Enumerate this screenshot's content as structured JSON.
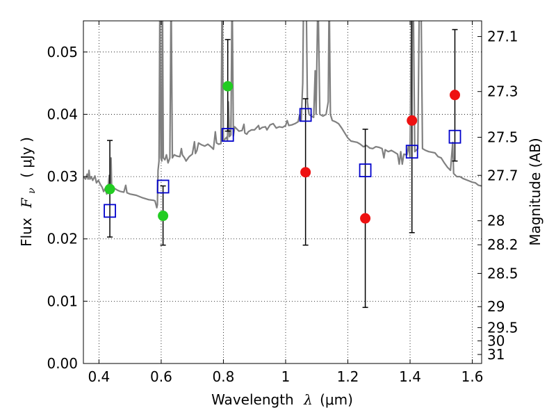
{
  "chart_data": {
    "type": "scatter",
    "xlabel": {
      "text": "Wavelength",
      "symbol": "λ",
      "unit": "(μm)"
    },
    "ylabel": {
      "text": "Flux",
      "symbol": "F",
      "subscript": "ν",
      "unit": "( μJy )"
    },
    "y2label": "Magnitude (AB)",
    "xlim": [
      0.35,
      1.63
    ],
    "ylim": [
      0.0,
      0.055
    ],
    "xticks": [
      0.4,
      0.6,
      0.8,
      1.0,
      1.2,
      1.4,
      1.6
    ],
    "xtick_labels": [
      "0.4",
      "0.6",
      "0.8",
      "1",
      "1.2",
      "1.4",
      "1.6"
    ],
    "yticks": [
      0.0,
      0.01,
      0.02,
      0.03,
      0.04,
      0.05
    ],
    "ytick_labels": [
      "0.00",
      "0.01",
      "0.02",
      "0.03",
      "0.04",
      "0.05"
    ],
    "y2ticks": [
      {
        "mag": 27.1,
        "label": "27.1"
      },
      {
        "mag": 27.3,
        "label": "27.3"
      },
      {
        "mag": 27.5,
        "label": "27.5"
      },
      {
        "mag": 27.7,
        "label": "27.7"
      },
      {
        "mag": 28.0,
        "label": "28"
      },
      {
        "mag": 28.2,
        "label": "28.2"
      },
      {
        "mag": 28.5,
        "label": "28.5"
      },
      {
        "mag": 29.0,
        "label": "29"
      },
      {
        "mag": 29.5,
        "label": "29.5"
      },
      {
        "mag": 30.0,
        "label": "30"
      },
      {
        "mag": 31.0,
        "label": "31"
      }
    ],
    "grid": true,
    "colors": {
      "model": "#808080",
      "observed_green": "#22cc22",
      "observed_red": "#ee1111",
      "model_box": "#0000cc",
      "errorbar": "#000000"
    },
    "errorbars": [
      {
        "x": 0.435,
        "y": 0.028,
        "ylow": 0.0203,
        "yhigh": 0.0358
      },
      {
        "x": 0.606,
        "y": 0.0237,
        "ylow": 0.019,
        "yhigh": 0.0285
      },
      {
        "x": 0.814,
        "y": 0.0445,
        "ylow": 0.0373,
        "yhigh": 0.052
      },
      {
        "x": 1.064,
        "y": 0.0307,
        "ylow": 0.019,
        "yhigh": 0.0425
      },
      {
        "x": 1.256,
        "y": 0.0233,
        "ylow": 0.009,
        "yhigh": 0.0376
      },
      {
        "x": 1.406,
        "y": 0.039,
        "ylow": 0.021,
        "yhigh": 0.056
      },
      {
        "x": 1.544,
        "y": 0.0431,
        "ylow": 0.0325,
        "yhigh": 0.0536
      }
    ],
    "observed_green": [
      {
        "x": 0.435,
        "y": 0.028
      },
      {
        "x": 0.606,
        "y": 0.0237
      },
      {
        "x": 0.814,
        "y": 0.0445
      }
    ],
    "observed_red": [
      {
        "x": 1.064,
        "y": 0.0307
      },
      {
        "x": 1.256,
        "y": 0.0233
      },
      {
        "x": 1.406,
        "y": 0.039
      },
      {
        "x": 1.544,
        "y": 0.0431
      }
    ],
    "model_boxes": [
      {
        "x": 0.435,
        "y": 0.0245
      },
      {
        "x": 0.606,
        "y": 0.0284
      },
      {
        "x": 0.814,
        "y": 0.0367
      },
      {
        "x": 1.064,
        "y": 0.0399
      },
      {
        "x": 1.256,
        "y": 0.031
      },
      {
        "x": 1.406,
        "y": 0.034
      },
      {
        "x": 1.544,
        "y": 0.0364
      }
    ],
    "model_spectrum": [
      [
        0.35,
        0.03
      ],
      [
        0.357,
        0.0296
      ],
      [
        0.362,
        0.0304
      ],
      [
        0.365,
        0.0296
      ],
      [
        0.368,
        0.031
      ],
      [
        0.371,
        0.0296
      ],
      [
        0.375,
        0.03
      ],
      [
        0.38,
        0.0294
      ],
      [
        0.387,
        0.0301
      ],
      [
        0.392,
        0.029
      ],
      [
        0.398,
        0.0294
      ],
      [
        0.405,
        0.0287
      ],
      [
        0.41,
        0.0283
      ],
      [
        0.415,
        0.0276
      ],
      [
        0.42,
        0.0281
      ],
      [
        0.425,
        0.0272
      ],
      [
        0.43,
        0.0285
      ],
      [
        0.433,
        0.0302
      ],
      [
        0.436,
        0.0274
      ],
      [
        0.439,
        0.033
      ],
      [
        0.441,
        0.028
      ],
      [
        0.443,
        0.0274
      ],
      [
        0.45,
        0.0281
      ],
      [
        0.46,
        0.0278
      ],
      [
        0.47,
        0.0276
      ],
      [
        0.48,
        0.0275
      ],
      [
        0.486,
        0.0286
      ],
      [
        0.49,
        0.0274
      ],
      [
        0.5,
        0.0272
      ],
      [
        0.52,
        0.027
      ],
      [
        0.54,
        0.0266
      ],
      [
        0.56,
        0.0263
      ],
      [
        0.575,
        0.0262
      ],
      [
        0.58,
        0.0261
      ],
      [
        0.586,
        0.025
      ],
      [
        0.588,
        0.0255
      ],
      [
        0.59,
        0.031
      ],
      [
        0.593,
        0.0325
      ],
      [
        0.596,
        0.06
      ],
      [
        0.599,
        0.033
      ],
      [
        0.602,
        0.0325
      ],
      [
        0.604,
        0.06
      ],
      [
        0.607,
        0.033
      ],
      [
        0.612,
        0.0327
      ],
      [
        0.617,
        0.0335
      ],
      [
        0.622,
        0.0322
      ],
      [
        0.628,
        0.033
      ],
      [
        0.632,
        0.06
      ],
      [
        0.636,
        0.033
      ],
      [
        0.642,
        0.0335
      ],
      [
        0.65,
        0.0333
      ],
      [
        0.66,
        0.0332
      ],
      [
        0.665,
        0.0345
      ],
      [
        0.668,
        0.0335
      ],
      [
        0.675,
        0.033
      ],
      [
        0.68,
        0.0325
      ],
      [
        0.69,
        0.0332
      ],
      [
        0.7,
        0.0336
      ],
      [
        0.707,
        0.0356
      ],
      [
        0.71,
        0.0337
      ],
      [
        0.715,
        0.0342
      ],
      [
        0.72,
        0.0354
      ],
      [
        0.73,
        0.0351
      ],
      [
        0.74,
        0.0349
      ],
      [
        0.75,
        0.0352
      ],
      [
        0.76,
        0.0348
      ],
      [
        0.768,
        0.0344
      ],
      [
        0.774,
        0.0372
      ],
      [
        0.778,
        0.0354
      ],
      [
        0.785,
        0.0352
      ],
      [
        0.792,
        0.0353
      ],
      [
        0.796,
        0.06
      ],
      [
        0.8,
        0.0358
      ],
      [
        0.805,
        0.036
      ],
      [
        0.81,
        0.0363
      ],
      [
        0.813,
        0.0358
      ],
      [
        0.816,
        0.042
      ],
      [
        0.819,
        0.0364
      ],
      [
        0.824,
        0.0367
      ],
      [
        0.828,
        0.06
      ],
      [
        0.832,
        0.0365
      ],
      [
        0.836,
        0.038
      ],
      [
        0.84,
        0.0378
      ],
      [
        0.85,
        0.0373
      ],
      [
        0.86,
        0.0374
      ],
      [
        0.866,
        0.0384
      ],
      [
        0.869,
        0.037
      ],
      [
        0.875,
        0.0368
      ],
      [
        0.88,
        0.0372
      ],
      [
        0.89,
        0.0375
      ],
      [
        0.9,
        0.0375
      ],
      [
        0.913,
        0.0382
      ],
      [
        0.916,
        0.0376
      ],
      [
        0.925,
        0.0379
      ],
      [
        0.935,
        0.038
      ],
      [
        0.94,
        0.0375
      ],
      [
        0.95,
        0.0383
      ],
      [
        0.96,
        0.0385
      ],
      [
        0.97,
        0.0378
      ],
      [
        0.98,
        0.038
      ],
      [
        0.99,
        0.0379
      ],
      [
        1.0,
        0.0382
      ],
      [
        1.005,
        0.039
      ],
      [
        1.01,
        0.0382
      ],
      [
        1.02,
        0.0383
      ],
      [
        1.03,
        0.0385
      ],
      [
        1.04,
        0.0388
      ],
      [
        1.045,
        0.0399
      ],
      [
        1.05,
        0.039
      ],
      [
        1.055,
        0.045
      ],
      [
        1.058,
        0.06
      ],
      [
        1.066,
        0.06
      ],
      [
        1.07,
        0.042
      ],
      [
        1.075,
        0.04
      ],
      [
        1.08,
        0.0398
      ],
      [
        1.09,
        0.0395
      ],
      [
        1.095,
        0.047
      ],
      [
        1.098,
        0.04
      ],
      [
        1.104,
        0.06
      ],
      [
        1.11,
        0.04
      ],
      [
        1.12,
        0.0397
      ],
      [
        1.13,
        0.04
      ],
      [
        1.137,
        0.042
      ],
      [
        1.14,
        0.06
      ],
      [
        1.144,
        0.04
      ],
      [
        1.15,
        0.039
      ],
      [
        1.16,
        0.0388
      ],
      [
        1.17,
        0.0385
      ],
      [
        1.18,
        0.0378
      ],
      [
        1.19,
        0.037
      ],
      [
        1.2,
        0.0362
      ],
      [
        1.21,
        0.0357
      ],
      [
        1.22,
        0.0356
      ],
      [
        1.23,
        0.0355
      ],
      [
        1.24,
        0.0352
      ],
      [
        1.25,
        0.0348
      ],
      [
        1.26,
        0.035
      ],
      [
        1.27,
        0.0346
      ],
      [
        1.28,
        0.0345
      ],
      [
        1.29,
        0.0348
      ],
      [
        1.3,
        0.0347
      ],
      [
        1.31,
        0.0345
      ],
      [
        1.316,
        0.033
      ],
      [
        1.32,
        0.0343
      ],
      [
        1.33,
        0.034
      ],
      [
        1.34,
        0.0342
      ],
      [
        1.35,
        0.0339
      ],
      [
        1.36,
        0.0336
      ],
      [
        1.365,
        0.032
      ],
      [
        1.37,
        0.034
      ],
      [
        1.375,
        0.032
      ],
      [
        1.38,
        0.0336
      ],
      [
        1.39,
        0.0335
      ],
      [
        1.395,
        0.035
      ],
      [
        1.4,
        0.033
      ],
      [
        1.405,
        0.06
      ],
      [
        1.41,
        0.06
      ],
      [
        1.415,
        0.034
      ],
      [
        1.425,
        0.0345
      ],
      [
        1.43,
        0.06
      ],
      [
        1.435,
        0.06
      ],
      [
        1.44,
        0.0345
      ],
      [
        1.45,
        0.0342
      ],
      [
        1.46,
        0.034
      ],
      [
        1.47,
        0.0339
      ],
      [
        1.48,
        0.0338
      ],
      [
        1.49,
        0.0332
      ],
      [
        1.5,
        0.033
      ],
      [
        1.51,
        0.0322
      ],
      [
        1.52,
        0.0315
      ],
      [
        1.53,
        0.031
      ],
      [
        1.537,
        0.0355
      ],
      [
        1.54,
        0.0305
      ],
      [
        1.55,
        0.03
      ],
      [
        1.56,
        0.03
      ],
      [
        1.57,
        0.0297
      ],
      [
        1.58,
        0.0295
      ],
      [
        1.59,
        0.0293
      ],
      [
        1.6,
        0.0291
      ],
      [
        1.61,
        0.029
      ],
      [
        1.62,
        0.0286
      ],
      [
        1.63,
        0.0285
      ]
    ]
  }
}
